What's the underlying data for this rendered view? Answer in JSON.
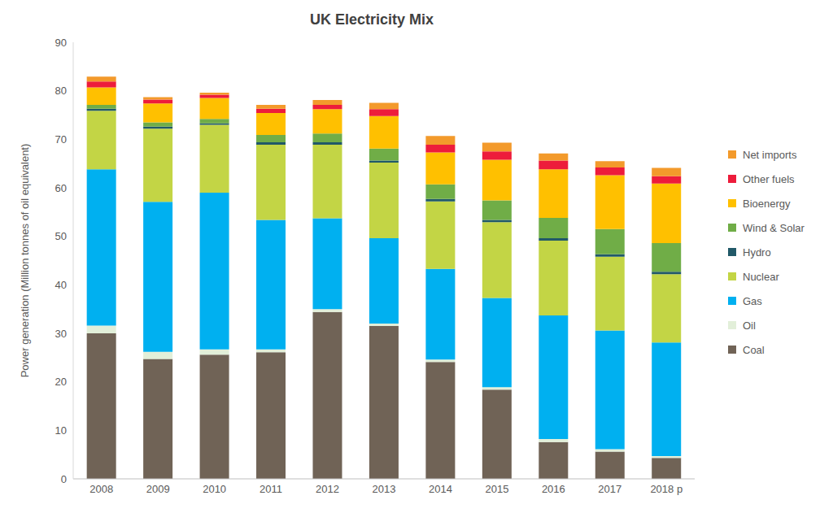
{
  "chart_data": {
    "type": "bar",
    "title": "UK Electricity Mix",
    "y_label": "Power generation (Million tonnes of oil equivalent)",
    "stacked": true,
    "grid": false,
    "legend": "right",
    "ylim": [
      0,
      90
    ],
    "yticks": [
      0,
      10,
      20,
      30,
      40,
      50,
      60,
      70,
      80,
      90
    ],
    "categories": [
      "2008",
      "2009",
      "2010",
      "2011",
      "2012",
      "2013",
      "2014",
      "2015",
      "2016",
      "2017",
      "2018 p"
    ],
    "series": [
      {
        "name": "Coal",
        "color": "#706356",
        "values": [
          30,
          24.7,
          25.6,
          26.1,
          34.4,
          31.5,
          24.1,
          18.4,
          7.6,
          5.6,
          4.3
        ]
      },
      {
        "name": "Oil",
        "color": "#e2efd9",
        "values": [
          1.6,
          1.5,
          1.1,
          0.6,
          0.6,
          0.5,
          0.5,
          0.5,
          0.6,
          0.5,
          0.4
        ]
      },
      {
        "name": "Gas",
        "color": "#00b0f0",
        "values": [
          32.2,
          30.9,
          32.3,
          26.7,
          18.7,
          17.6,
          18.7,
          18.4,
          25.5,
          24.5,
          23.4
        ]
      },
      {
        "name": "Nuclear",
        "color": "#c3d545",
        "values": [
          12.1,
          15.1,
          14,
          15.5,
          15.2,
          15.6,
          13.9,
          15.6,
          15.4,
          15.2,
          14.1
        ]
      },
      {
        "name": "Hydro",
        "color": "#215968",
        "values": [
          0.4,
          0.4,
          0.3,
          0.5,
          0.5,
          0.4,
          0.5,
          0.5,
          0.5,
          0.5,
          0.5
        ]
      },
      {
        "name": "Wind & Solar",
        "color": "#70ad47",
        "values": [
          0.8,
          0.9,
          0.9,
          1.5,
          1.8,
          2.5,
          3,
          4,
          4.2,
          5.2,
          5.9
        ]
      },
      {
        "name": "Bioenergy",
        "color": "#ffc000",
        "values": [
          3.6,
          3.9,
          4.3,
          4.5,
          5,
          6.7,
          6.6,
          8.4,
          10,
          11.1,
          12.3
        ]
      },
      {
        "name": "Other fuels",
        "color": "#ed1c3b",
        "values": [
          1.2,
          0.8,
          0.7,
          0.9,
          0.9,
          1.4,
          1.6,
          1.7,
          1.8,
          1.6,
          1.5
        ]
      },
      {
        "name": "Net imports",
        "color": "#f39a2b",
        "values": [
          1,
          0.5,
          0.4,
          0.8,
          1,
          1.3,
          1.8,
          1.8,
          1.5,
          1.3,
          1.7
        ]
      }
    ]
  }
}
